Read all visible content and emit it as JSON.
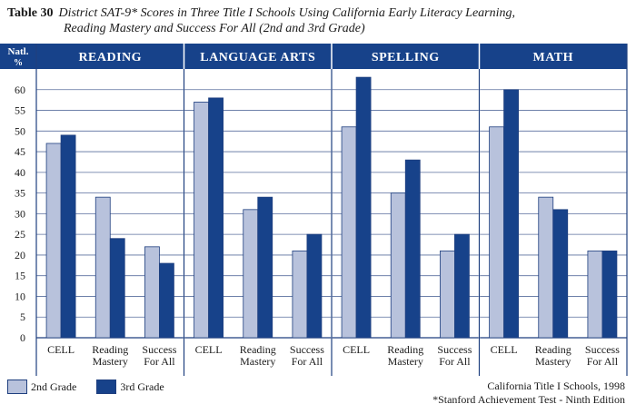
{
  "title": {
    "label": "Table 30",
    "line1": "District SAT-9* Scores in Three Title I Schools Using California Early Literacy Learning,",
    "line2": "Reading Mastery and Success For All (2nd and 3rd Grade)"
  },
  "chart_data": {
    "type": "bar",
    "ylabel": "Natl. %",
    "ylabel_line1": "Natl.",
    "ylabel_line2": "%",
    "ylim": [
      0,
      65
    ],
    "yticks": [
      "0",
      "5",
      "10",
      "15",
      "20",
      "25",
      "30",
      "35",
      "40",
      "45",
      "50",
      "55",
      "60"
    ],
    "grid": true,
    "legend_position": "bottom-left",
    "colors": {
      "grade2": "#b8c2dc",
      "grade3": "#17428a",
      "header": "#17428a"
    },
    "series_names": [
      "2nd Grade",
      "3rd Grade"
    ],
    "panels": [
      {
        "name": "READING",
        "categories": [
          [
            "CELL"
          ],
          [
            "Reading",
            "Mastery"
          ],
          [
            "Success",
            "For All"
          ]
        ],
        "grade2": [
          47,
          34,
          22
        ],
        "grade3": [
          49,
          24,
          18
        ]
      },
      {
        "name": "LANGUAGE ARTS",
        "categories": [
          [
            "CELL"
          ],
          [
            "Reading",
            "Mastery"
          ],
          [
            "Success",
            "For All"
          ]
        ],
        "grade2": [
          57,
          31,
          21
        ],
        "grade3": [
          58,
          34,
          25
        ]
      },
      {
        "name": "SPELLING",
        "categories": [
          [
            "CELL"
          ],
          [
            "Reading",
            "Mastery"
          ],
          [
            "Success",
            "For All"
          ]
        ],
        "grade2": [
          51,
          35,
          21
        ],
        "grade3": [
          63,
          43,
          25
        ]
      },
      {
        "name": "MATH",
        "categories": [
          [
            "CELL"
          ],
          [
            "Reading",
            "Mastery"
          ],
          [
            "Success",
            "For All"
          ]
        ],
        "grade2": [
          51,
          34,
          21
        ],
        "grade3": [
          60,
          31,
          21
        ]
      }
    ]
  },
  "legend": {
    "grade2": "2nd Grade",
    "grade3": "3rd Grade"
  },
  "source": {
    "line1": "California Title I Schools, 1998",
    "line2": "*Stanford Achievement Test - Ninth Edition"
  }
}
